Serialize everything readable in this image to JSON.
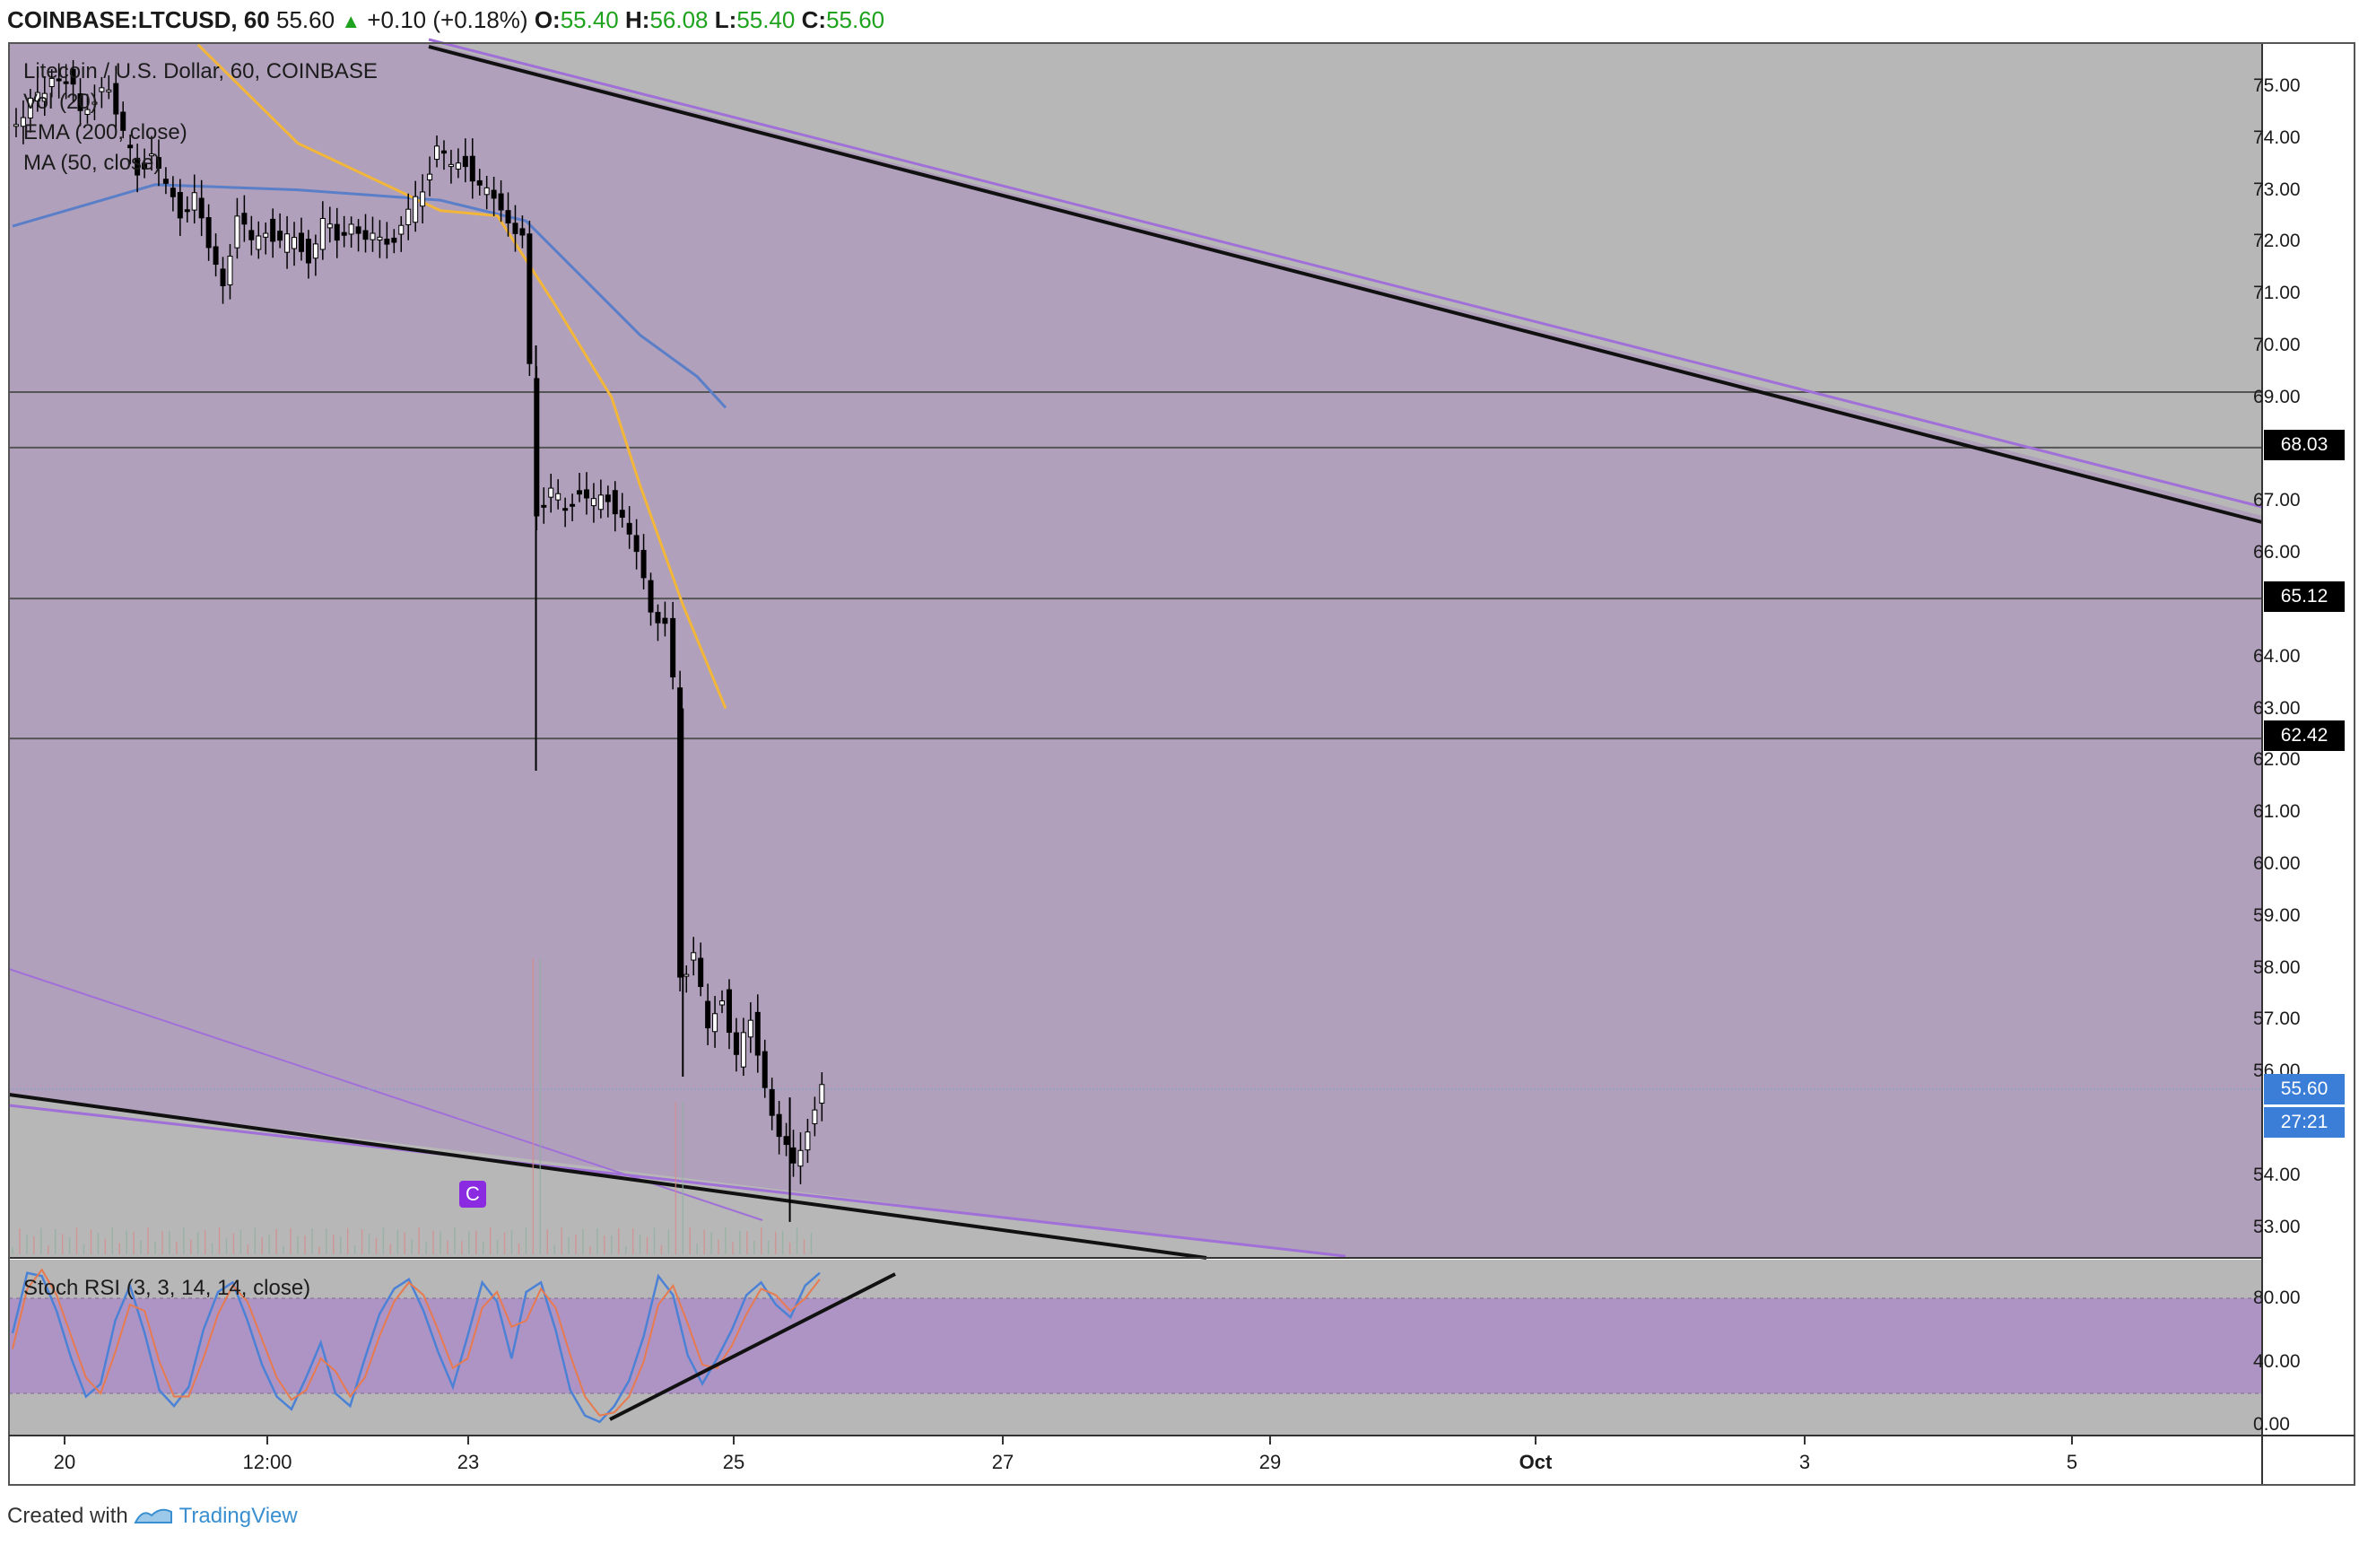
{
  "header": {
    "symbol": "COINBASE:LTCUSD, 60",
    "last": "55.60",
    "change": "+0.10 (+0.18%)",
    "o_label": "O:",
    "o": "55.40",
    "h_label": "H:",
    "h": "56.08",
    "l_label": "L:",
    "l": "55.40",
    "c_label": "C:",
    "c": "55.60",
    "up_icon": "triangle-up-icon"
  },
  "legend": {
    "title": "Litecoin / U.S. Dollar, 60, COINBASE",
    "vol": "Vol (20)",
    "ema": "EMA (200, close)",
    "ma": "MA (50, close)",
    "stoch": "Stoch RSI (3, 3, 14, 14, close)"
  },
  "price_badges": [
    "68.03",
    "65.12",
    "62.42"
  ],
  "current_price_badge": "55.60",
  "countdown_badge": "27:21",
  "event_marker": "C",
  "footer": {
    "created": "Created with",
    "brand": "TradingView",
    "logo_icon": "tradingview-logo-icon"
  },
  "colors": {
    "channel_fill": "#b0a0bb",
    "chart_bg": "#b7b7b7",
    "candle": "#000000",
    "ema": "#5a7fc8",
    "ma": "#f2b63a",
    "rsi_band": "#ae94c4",
    "k_line": "#4c82d6",
    "d_line": "#e87a4f",
    "current_price": "#3b7ed8"
  },
  "chart_data": [
    {
      "type": "candlestick",
      "y_ticks": [
        "75.00",
        "74.00",
        "73.00",
        "72.00",
        "71.00",
        "70.00",
        "69.00",
        "67.00",
        "66.00",
        "64.00",
        "63.00",
        "62.00",
        "61.00",
        "60.00",
        "59.00",
        "58.00",
        "57.00",
        "56.00",
        "54.00",
        "53.00"
      ],
      "x_ticks": [
        "20",
        "12:00",
        "23",
        "25",
        "27",
        "29",
        "Oct",
        "3",
        "5"
      ],
      "ylim": [
        52.5,
        75.8
      ],
      "horizontal_levels": [
        69.1,
        68.03,
        65.12,
        62.42
      ],
      "current_price": 55.6,
      "price_path": [
        [
          0,
          74.2
        ],
        [
          2,
          74.8
        ],
        [
          4,
          75.2
        ],
        [
          5,
          74.6
        ],
        [
          7,
          74.9
        ],
        [
          8,
          74.0
        ],
        [
          9,
          73.4
        ],
        [
          10,
          73.7
        ],
        [
          11,
          73.0
        ],
        [
          12,
          72.6
        ],
        [
          13,
          72.9
        ],
        [
          14,
          71.8
        ],
        [
          15,
          71.3
        ],
        [
          16,
          72.4
        ],
        [
          17,
          72.0
        ],
        [
          18,
          72.3
        ],
        [
          19,
          71.9
        ],
        [
          20,
          72.1
        ],
        [
          21,
          71.7
        ],
        [
          22,
          72.3
        ],
        [
          23,
          72.1
        ],
        [
          24,
          72.4
        ],
        [
          25,
          71.9
        ],
        [
          26,
          72.2
        ],
        [
          27,
          72.0
        ],
        [
          28,
          72.5
        ],
        [
          29,
          73.1
        ],
        [
          30,
          73.8
        ],
        [
          31,
          73.4
        ],
        [
          32,
          73.6
        ],
        [
          33,
          73.0
        ],
        [
          34,
          72.8
        ],
        [
          35,
          72.5
        ],
        [
          36,
          72.0
        ],
        [
          36.5,
          69.5
        ],
        [
          37,
          66.8
        ],
        [
          38,
          67.1
        ],
        [
          39,
          66.9
        ],
        [
          40,
          67.2
        ],
        [
          41,
          66.9
        ],
        [
          42,
          67.1
        ],
        [
          43,
          66.7
        ],
        [
          44,
          65.9
        ],
        [
          45,
          65.0
        ],
        [
          46,
          64.6
        ],
        [
          46.6,
          63.5
        ],
        [
          47,
          57.8
        ],
        [
          48,
          58.2
        ],
        [
          49,
          56.8
        ],
        [
          50,
          57.5
        ],
        [
          51,
          56.2
        ],
        [
          52,
          57.0
        ],
        [
          53,
          55.8
        ],
        [
          54,
          54.6
        ],
        [
          55,
          54.3
        ],
        [
          56,
          54.9
        ],
        [
          57,
          55.6
        ]
      ],
      "price_path_unit": "hour offset from first bar (approx. every 3 hours)",
      "ema200": [
        [
          0,
          72.3
        ],
        [
          10,
          73.1
        ],
        [
          20,
          73.0
        ],
        [
          30,
          72.8
        ],
        [
          36,
          72.4
        ],
        [
          40,
          71.3
        ],
        [
          44,
          70.2
        ],
        [
          48,
          69.4
        ],
        [
          50,
          68.8
        ]
      ],
      "ma50": [
        [
          13,
          75.8
        ],
        [
          20,
          73.9
        ],
        [
          30,
          72.6
        ],
        [
          34,
          72.5
        ],
        [
          38,
          70.8
        ],
        [
          42,
          69.0
        ],
        [
          44,
          67.3
        ],
        [
          47,
          65.0
        ],
        [
          50,
          63.0
        ]
      ]
    },
    {
      "type": "line",
      "title": "Stoch RSI (3, 3, 14, 14, close)",
      "y_ticks": [
        "80.00",
        "40.00",
        "0.00"
      ],
      "ylim": [
        -5,
        105
      ],
      "band": [
        20,
        80
      ],
      "series": [
        {
          "values": [
            58,
            96,
            94,
            72,
            42,
            18,
            26,
            66,
            88,
            58,
            22,
            12,
            24,
            60,
            84,
            90,
            66,
            38,
            18,
            10,
            30,
            52,
            20,
            12,
            42,
            70,
            86,
            92,
            72,
            46,
            24,
            56,
            90,
            78,
            42,
            84,
            90,
            60,
            22,
            6,
            2,
            12,
            28,
            56,
            94,
            82,
            44,
            26,
            42,
            60,
            82,
            90,
            76,
            68,
            88,
            96
          ]
        },
        {
          "values": [
            48,
            86,
            98,
            82,
            56,
            30,
            20,
            46,
            76,
            72,
            40,
            18,
            18,
            42,
            70,
            88,
            78,
            54,
            30,
            16,
            22,
            42,
            34,
            18,
            30,
            56,
            78,
            90,
            82,
            60,
            36,
            42,
            74,
            84,
            62,
            66,
            86,
            74,
            44,
            18,
            6,
            8,
            18,
            40,
            76,
            88,
            64,
            38,
            36,
            50,
            70,
            86,
            82,
            72,
            80,
            92
          ]
        }
      ]
    }
  ]
}
